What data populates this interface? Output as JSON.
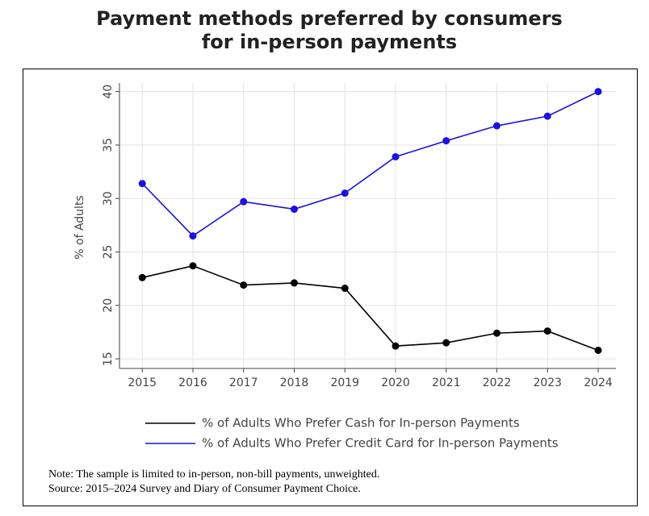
{
  "chart_data": {
    "type": "line",
    "title": [
      "Payment methods preferred by consumers",
      "for in-person payments"
    ],
    "y_label": "% of Adults",
    "x": [
      2015,
      2016,
      2017,
      2018,
      2019,
      2020,
      2021,
      2022,
      2023,
      2024
    ],
    "xlim": [
      2014.55,
      2024.35
    ],
    "xticks": [
      2015,
      2016,
      2017,
      2018,
      2019,
      2020,
      2021,
      2022,
      2023,
      2024
    ],
    "ylim": [
      14.1,
      40.8
    ],
    "yticks": [
      15,
      20,
      25,
      30,
      35,
      40
    ],
    "grid": true,
    "legend": "bottom",
    "series": [
      {
        "name": "% of Adults Who Prefer Cash for In-person Payments",
        "color": "#000000",
        "values": [
          22.6,
          23.7,
          21.9,
          22.1,
          21.6,
          16.2,
          16.5,
          17.4,
          17.6,
          15.8
        ]
      },
      {
        "name": "% of Adults Who Prefer Credit Card for In-person Payments",
        "color": "#1a10e0",
        "values": [
          31.4,
          26.5,
          29.7,
          29.0,
          30.5,
          33.9,
          35.4,
          36.8,
          37.7,
          40.0
        ]
      }
    ],
    "notes": [
      "Note: The sample is limited to in-person, non-bill payments, unweighted.",
      "Source: 2015–2024 Survey and Diary of Consumer Payment Choice."
    ]
  }
}
